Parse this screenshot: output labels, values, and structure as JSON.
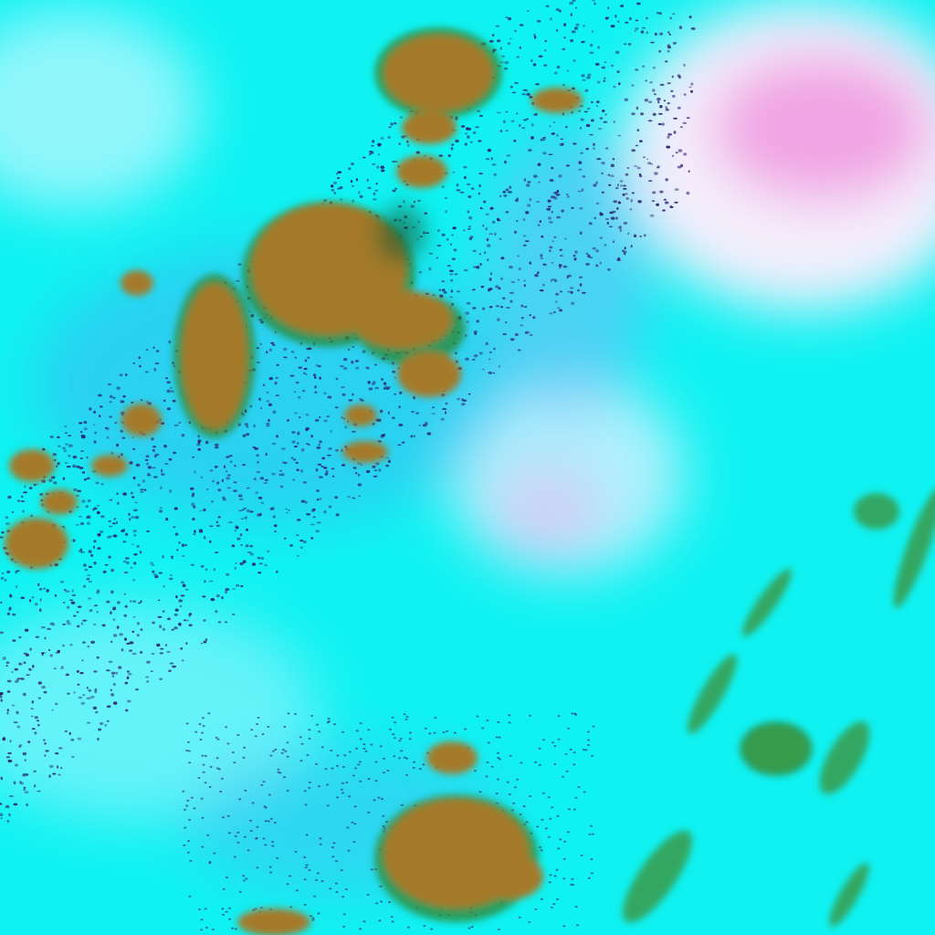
{
  "image": {
    "kind": "false-color satellite cloud imagery",
    "colors": {
      "background_cyan": "#10f2f2",
      "haze_white": "#e8fbff",
      "pink_cloud": "#f08ad8",
      "blue_haze": "#6aa8f0",
      "olive_cloud": "#a0782a",
      "green_edge": "#3c8c3a",
      "speckle_dark": "#2a1c6a"
    }
  }
}
